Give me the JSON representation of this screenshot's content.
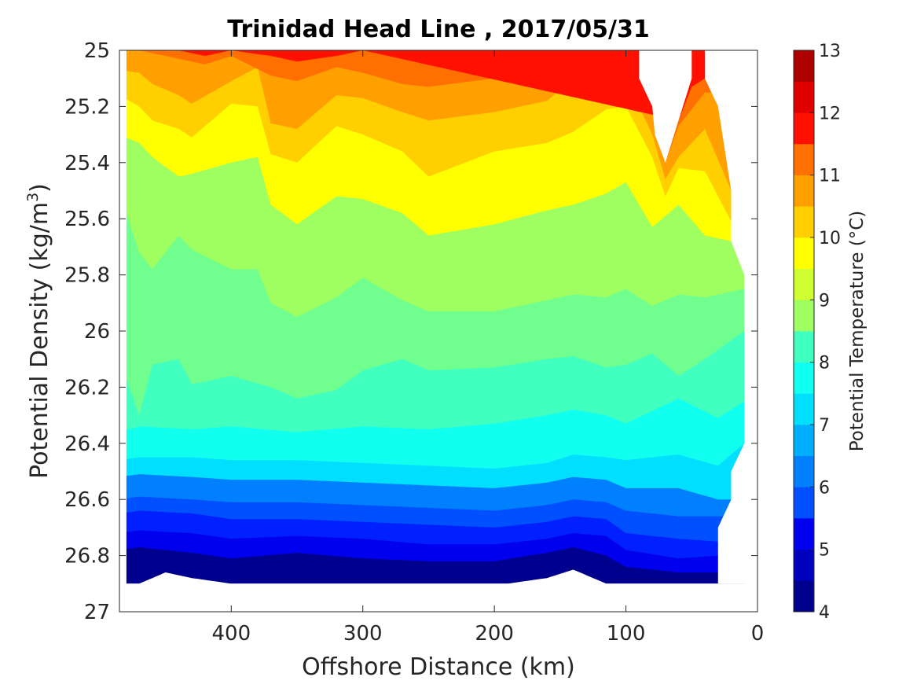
{
  "chart_data": {
    "type": "contourf",
    "title": "Trinidad Head Line , 2017/05/31",
    "xlabel": "Offshore Distance (km)",
    "ylabel_main": "Potential Density (kg/m",
    "ylabel_sup": "3",
    "ylabel_close": ")",
    "xlim": [
      485,
      0
    ],
    "ylim": [
      25,
      27
    ],
    "y_reversed": true,
    "x_reversed": true,
    "xticks": [
      400,
      300,
      200,
      100,
      0
    ],
    "yticks": [
      25,
      25.2,
      25.4,
      25.6,
      25.8,
      26,
      26.2,
      26.4,
      26.6,
      26.8,
      27
    ],
    "ytick_labels": [
      "25",
      "25.2",
      "25.4",
      "25.6",
      "25.8",
      "26",
      "26.2",
      "26.4",
      "26.6",
      "26.8",
      "27"
    ],
    "colorbar": {
      "label": "Potential Temperature (°C)",
      "min": 4,
      "max": 13,
      "ticks": [
        4,
        5,
        6,
        7,
        8,
        9,
        10,
        11,
        12,
        13
      ],
      "levels": [
        4,
        4.5,
        5,
        5.5,
        6,
        6.5,
        7,
        7.5,
        8,
        8.5,
        9,
        9.5,
        10,
        10.5,
        11,
        11.5,
        12,
        12.5,
        13
      ],
      "colors": [
        "#00008f",
        "#0000bf",
        "#0000ef",
        "#0020ff",
        "#0050ff",
        "#0080ff",
        "#00b0ff",
        "#00dfff",
        "#10ffef",
        "#40ffbf",
        "#70ff8f",
        "#9fff60",
        "#cfff30",
        "#ffff00",
        "#ffcf00",
        "#ff9f00",
        "#ff7000",
        "#ff4000",
        "#ff1000",
        "#df0000",
        "#af0000"
      ]
    },
    "bands": [
      {
        "color": "#00008f",
        "lower_bound_density": [
          [
            470,
            26.9
          ],
          [
            450,
            26.86
          ],
          [
            430,
            26.88
          ],
          [
            400,
            26.9
          ],
          [
            300,
            26.9
          ],
          [
            190,
            26.9
          ],
          [
            160,
            26.88
          ],
          [
            140,
            26.85
          ],
          [
            115,
            26.9
          ]
        ]
      },
      {
        "color": "#0000ef",
        "lower_bound_density": [
          [
            485,
            26.78
          ],
          [
            470,
            26.77
          ],
          [
            430,
            26.79
          ],
          [
            400,
            26.81
          ],
          [
            350,
            26.79
          ],
          [
            300,
            26.81
          ],
          [
            250,
            26.82
          ],
          [
            200,
            26.82
          ],
          [
            160,
            26.79
          ],
          [
            140,
            26.77
          ],
          [
            115,
            26.8
          ],
          [
            100,
            26.84
          ],
          [
            60,
            26.86
          ],
          [
            30,
            26.86
          ]
        ]
      },
      {
        "color": "#0020ff",
        "lower_bound_density": [
          [
            485,
            26.72
          ],
          [
            470,
            26.71
          ],
          [
            430,
            26.72
          ],
          [
            400,
            26.74
          ],
          [
            350,
            26.73
          ],
          [
            300,
            26.74
          ],
          [
            250,
            26.76
          ],
          [
            200,
            26.76
          ],
          [
            160,
            26.74
          ],
          [
            140,
            26.72
          ],
          [
            115,
            26.73
          ],
          [
            100,
            26.78
          ],
          [
            60,
            26.81
          ],
          [
            30,
            26.8
          ]
        ]
      },
      {
        "color": "#0050ff",
        "lower_bound_density": [
          [
            485,
            26.65
          ],
          [
            470,
            26.64
          ],
          [
            430,
            26.65
          ],
          [
            400,
            26.67
          ],
          [
            350,
            26.67
          ],
          [
            300,
            26.68
          ],
          [
            250,
            26.69
          ],
          [
            200,
            26.7
          ],
          [
            160,
            26.68
          ],
          [
            140,
            26.66
          ],
          [
            115,
            26.67
          ],
          [
            100,
            26.72
          ],
          [
            60,
            26.74
          ],
          [
            30,
            26.75
          ]
        ]
      },
      {
        "color": "#0080ff",
        "lower_bound_density": [
          [
            485,
            26.6
          ],
          [
            470,
            26.59
          ],
          [
            430,
            26.6
          ],
          [
            400,
            26.61
          ],
          [
            350,
            26.61
          ],
          [
            300,
            26.62
          ],
          [
            250,
            26.63
          ],
          [
            200,
            26.64
          ],
          [
            160,
            26.62
          ],
          [
            140,
            26.6
          ],
          [
            115,
            26.61
          ],
          [
            100,
            26.64
          ],
          [
            60,
            26.66
          ],
          [
            30,
            26.66
          ]
        ]
      },
      {
        "color": "#00dfff",
        "lower_bound_density": [
          [
            485,
            26.52
          ],
          [
            470,
            26.51
          ],
          [
            430,
            26.52
          ],
          [
            400,
            26.53
          ],
          [
            350,
            26.53
          ],
          [
            300,
            26.54
          ],
          [
            250,
            26.55
          ],
          [
            200,
            26.56
          ],
          [
            160,
            26.54
          ],
          [
            140,
            26.52
          ],
          [
            115,
            26.53
          ],
          [
            100,
            26.56
          ],
          [
            60,
            26.56
          ],
          [
            30,
            26.6
          ]
        ]
      },
      {
        "color": "#10ffef",
        "lower_bound_density": [
          [
            485,
            26.46
          ],
          [
            470,
            26.45
          ],
          [
            430,
            26.45
          ],
          [
            400,
            26.46
          ],
          [
            350,
            26.46
          ],
          [
            300,
            26.47
          ],
          [
            250,
            26.48
          ],
          [
            200,
            26.49
          ],
          [
            160,
            26.47
          ],
          [
            140,
            26.44
          ],
          [
            115,
            26.45
          ],
          [
            100,
            26.46
          ],
          [
            60,
            26.44
          ],
          [
            30,
            26.48
          ],
          [
            10,
            26.4
          ]
        ]
      },
      {
        "color": "#40ffbf",
        "lower_bound_density": [
          [
            485,
            26.36
          ],
          [
            470,
            26.34
          ],
          [
            430,
            26.35
          ],
          [
            400,
            26.34
          ],
          [
            350,
            26.36
          ],
          [
            300,
            26.34
          ],
          [
            250,
            26.35
          ],
          [
            200,
            26.33
          ],
          [
            160,
            26.3
          ],
          [
            140,
            26.28
          ],
          [
            115,
            26.3
          ],
          [
            100,
            26.33
          ],
          [
            60,
            26.24
          ],
          [
            30,
            26.31
          ],
          [
            10,
            26.25
          ]
        ]
      },
      {
        "color": "#70ff8f",
        "lower_bound_density": [
          [
            485,
            26.1
          ],
          [
            470,
            26.3
          ],
          [
            460,
            26.12
          ],
          [
            440,
            26.1
          ],
          [
            430,
            26.19
          ],
          [
            400,
            26.16
          ],
          [
            370,
            26.2
          ],
          [
            350,
            26.24
          ],
          [
            320,
            26.21
          ],
          [
            300,
            26.14
          ],
          [
            270,
            26.1
          ],
          [
            250,
            26.14
          ],
          [
            200,
            26.13
          ],
          [
            160,
            26.1
          ],
          [
            140,
            26.09
          ],
          [
            115,
            26.13
          ],
          [
            100,
            26.12
          ],
          [
            80,
            26.08
          ],
          [
            60,
            26.16
          ],
          [
            40,
            26.1
          ],
          [
            10,
            26.0
          ]
        ]
      },
      {
        "color": "#9fff60",
        "lower_bound_density": [
          [
            485,
            25.5
          ],
          [
            470,
            25.72
          ],
          [
            460,
            25.78
          ],
          [
            440,
            25.66
          ],
          [
            430,
            25.71
          ],
          [
            400,
            25.78
          ],
          [
            380,
            25.78
          ],
          [
            370,
            25.9
          ],
          [
            350,
            25.95
          ],
          [
            320,
            25.88
          ],
          [
            300,
            25.81
          ],
          [
            270,
            25.89
          ],
          [
            250,
            25.93
          ],
          [
            200,
            25.93
          ],
          [
            160,
            25.89
          ],
          [
            140,
            25.87
          ],
          [
            115,
            25.88
          ],
          [
            100,
            25.85
          ],
          [
            80,
            25.91
          ],
          [
            60,
            25.87
          ],
          [
            40,
            25.88
          ],
          [
            10,
            25.85
          ]
        ]
      },
      {
        "color": "#ffff00",
        "lower_bound_density": [
          [
            485,
            25.3
          ],
          [
            470,
            25.33
          ],
          [
            460,
            25.38
          ],
          [
            440,
            25.45
          ],
          [
            430,
            25.44
          ],
          [
            400,
            25.4
          ],
          [
            380,
            25.38
          ],
          [
            370,
            25.55
          ],
          [
            350,
            25.62
          ],
          [
            320,
            25.52
          ],
          [
            300,
            25.53
          ],
          [
            270,
            25.58
          ],
          [
            250,
            25.66
          ],
          [
            200,
            25.62
          ],
          [
            160,
            25.57
          ],
          [
            140,
            25.55
          ],
          [
            115,
            25.51
          ],
          [
            100,
            25.47
          ],
          [
            80,
            25.63
          ],
          [
            60,
            25.55
          ],
          [
            40,
            25.66
          ],
          [
            20,
            25.68
          ],
          [
            10,
            25.78
          ]
        ]
      },
      {
        "color": "#ffcf00",
        "lower_bound_density": [
          [
            485,
            25.16
          ],
          [
            470,
            25.2
          ],
          [
            460,
            25.25
          ],
          [
            440,
            25.28
          ],
          [
            430,
            25.31
          ],
          [
            400,
            25.19
          ],
          [
            380,
            25.2
          ],
          [
            370,
            25.37
          ],
          [
            350,
            25.4
          ],
          [
            320,
            25.27
          ],
          [
            300,
            25.3
          ],
          [
            270,
            25.36
          ],
          [
            250,
            25.45
          ],
          [
            200,
            25.36
          ],
          [
            160,
            25.33
          ],
          [
            140,
            25.29
          ],
          [
            115,
            25.21
          ],
          [
            100,
            25.2
          ],
          [
            80,
            25.38
          ],
          [
            70,
            25.52
          ],
          [
            60,
            25.42
          ],
          [
            40,
            25.43
          ],
          [
            20,
            25.61
          ]
        ]
      },
      {
        "color": "#ffa000",
        "lower_bound_density": [
          [
            485,
            25.07
          ],
          [
            470,
            25.08
          ],
          [
            460,
            25.12
          ],
          [
            440,
            25.16
          ],
          [
            430,
            25.19
          ],
          [
            400,
            25.11
          ],
          [
            380,
            25.06
          ],
          [
            370,
            25.26
          ],
          [
            350,
            25.28
          ],
          [
            320,
            25.16
          ],
          [
            300,
            25.17
          ],
          [
            270,
            25.22
          ],
          [
            250,
            25.25
          ],
          [
            200,
            25.22
          ],
          [
            160,
            25.18
          ],
          [
            140,
            25.1
          ],
          [
            115,
            25.08
          ],
          [
            100,
            25.1
          ],
          [
            80,
            25.3
          ],
          [
            70,
            25.46
          ],
          [
            60,
            25.38
          ],
          [
            40,
            25.28
          ],
          [
            20,
            25.5
          ]
        ]
      },
      {
        "color": "#ff7000",
        "lower_bound_density": [
          [
            470,
            25.0
          ],
          [
            440,
            25.03
          ],
          [
            420,
            25.05
          ],
          [
            400,
            25.02
          ],
          [
            370,
            25.09
          ],
          [
            350,
            25.11
          ],
          [
            320,
            25.06
          ],
          [
            300,
            25.08
          ],
          [
            270,
            25.12
          ],
          [
            250,
            25.13
          ],
          [
            200,
            25.1
          ],
          [
            160,
            25.05
          ],
          [
            140,
            25.02
          ],
          [
            115,
            25.0
          ],
          [
            90,
            25.14
          ],
          [
            80,
            25.22
          ],
          [
            70,
            25.4
          ],
          [
            60,
            25.27
          ],
          [
            40,
            25.15
          ]
        ]
      },
      {
        "color": "#ff1000",
        "lower_bound_density": [
          [
            440,
            25.0
          ],
          [
            420,
            25.02
          ],
          [
            400,
            25.0
          ],
          [
            370,
            25.02
          ],
          [
            350,
            25.04
          ],
          [
            320,
            25.02
          ],
          [
            300,
            25.0
          ],
          [
            60,
            25.25
          ],
          [
            50,
            25.13
          ],
          [
            40,
            25.1
          ],
          [
            30,
            25.2
          ]
        ]
      }
    ],
    "data_mask_note": ""
  }
}
